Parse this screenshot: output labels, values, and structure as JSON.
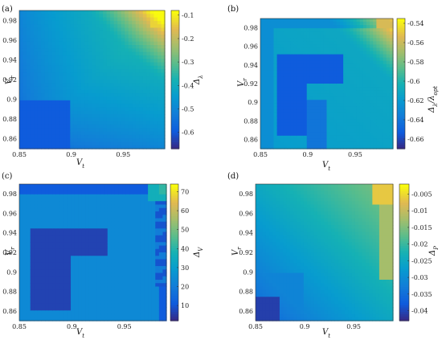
{
  "chart_data": [
    {
      "type": "heatmap",
      "panel_label": "(a)",
      "xlabel": "Vt",
      "ylabel": "Vr",
      "colorbar_label": "Δλ",
      "xlim": [
        0.85,
        0.99
      ],
      "ylim": [
        0.85,
        0.99
      ],
      "xticks": [
        "0.85",
        "0.9",
        "0.95"
      ],
      "yticks": [
        "0.86",
        "0.88",
        "0.9",
        "0.92",
        "0.94",
        "0.96",
        "0.98"
      ],
      "colorbar_ticks": [
        "-0.6",
        "-0.5",
        "-0.4",
        "-0.3",
        "-0.2",
        "-0.1"
      ],
      "colorbar_range": [
        -0.67,
        -0.08
      ],
      "description_values": {
        "min_region": "Vt 0.85–0.90, Vr 0.85–0.90 ≈ -0.62",
        "max_region": "Vt≈0.99, Vr≈0.99 ≈ -0.09"
      }
    },
    {
      "type": "heatmap",
      "panel_label": "(b)",
      "xlabel": "Vt",
      "ylabel": "Vr",
      "colorbar_label": "Δλ/λopt",
      "xlim": [
        0.85,
        0.99
      ],
      "ylim": [
        0.85,
        0.99
      ],
      "xticks": [
        "0.85",
        "0.9",
        "0.95"
      ],
      "yticks": [
        "0.86",
        "0.88",
        "0.9",
        "0.92",
        "0.94",
        "0.96",
        "0.98"
      ],
      "colorbar_ticks": [
        "-0.54",
        "-0.56",
        "-0.58",
        "-0.6",
        "-0.62",
        "-0.64",
        "-0.66"
      ],
      "colorbar_range": [
        -0.67,
        -0.535
      ],
      "description_values": {
        "min_region": "L-shaped band ≈ -0.66",
        "max_region": "top-right corner ≈ -0.54"
      }
    },
    {
      "type": "heatmap",
      "panel_label": "(c)",
      "xlabel": "Vt",
      "ylabel": "Vr",
      "colorbar_label": "ΔV",
      "xlim": [
        0.85,
        0.99
      ],
      "ylim": [
        0.85,
        0.99
      ],
      "xticks": [
        "0.85",
        "0.9",
        "0.95"
      ],
      "yticks": [
        "0.86",
        "0.88",
        "0.9",
        "0.92",
        "0.94",
        "0.96",
        "0.98"
      ],
      "colorbar_ticks": [
        "10",
        "20",
        "30",
        "40",
        "50",
        "60",
        "70"
      ],
      "colorbar_range": [
        2,
        74
      ],
      "description_values": {
        "min_region": "L-shaped band and outer border ≈ 5",
        "max_region": "top-right corner ≈ 40"
      }
    },
    {
      "type": "heatmap",
      "panel_label": "(d)",
      "xlabel": "Vt",
      "ylabel": "Vr",
      "colorbar_label": "ΔP",
      "xlim": [
        0.85,
        0.99
      ],
      "ylim": [
        0.85,
        0.99
      ],
      "xticks": [
        "0.85",
        "0.9",
        "0.95"
      ],
      "yticks": [
        "0.86",
        "0.88",
        "0.9",
        "0.92",
        "0.94",
        "0.96",
        "0.98"
      ],
      "colorbar_ticks": [
        "-0.005",
        "-0.01",
        "-0.015",
        "-0.02",
        "-0.025",
        "-0.03",
        "-0.035",
        "-0.04"
      ],
      "colorbar_range": [
        -0.043,
        -0.002
      ],
      "description_values": {
        "min_region": "bottom-left corner ≈ -0.04",
        "max_region": "top-right corner ≈ -0.003"
      }
    }
  ]
}
